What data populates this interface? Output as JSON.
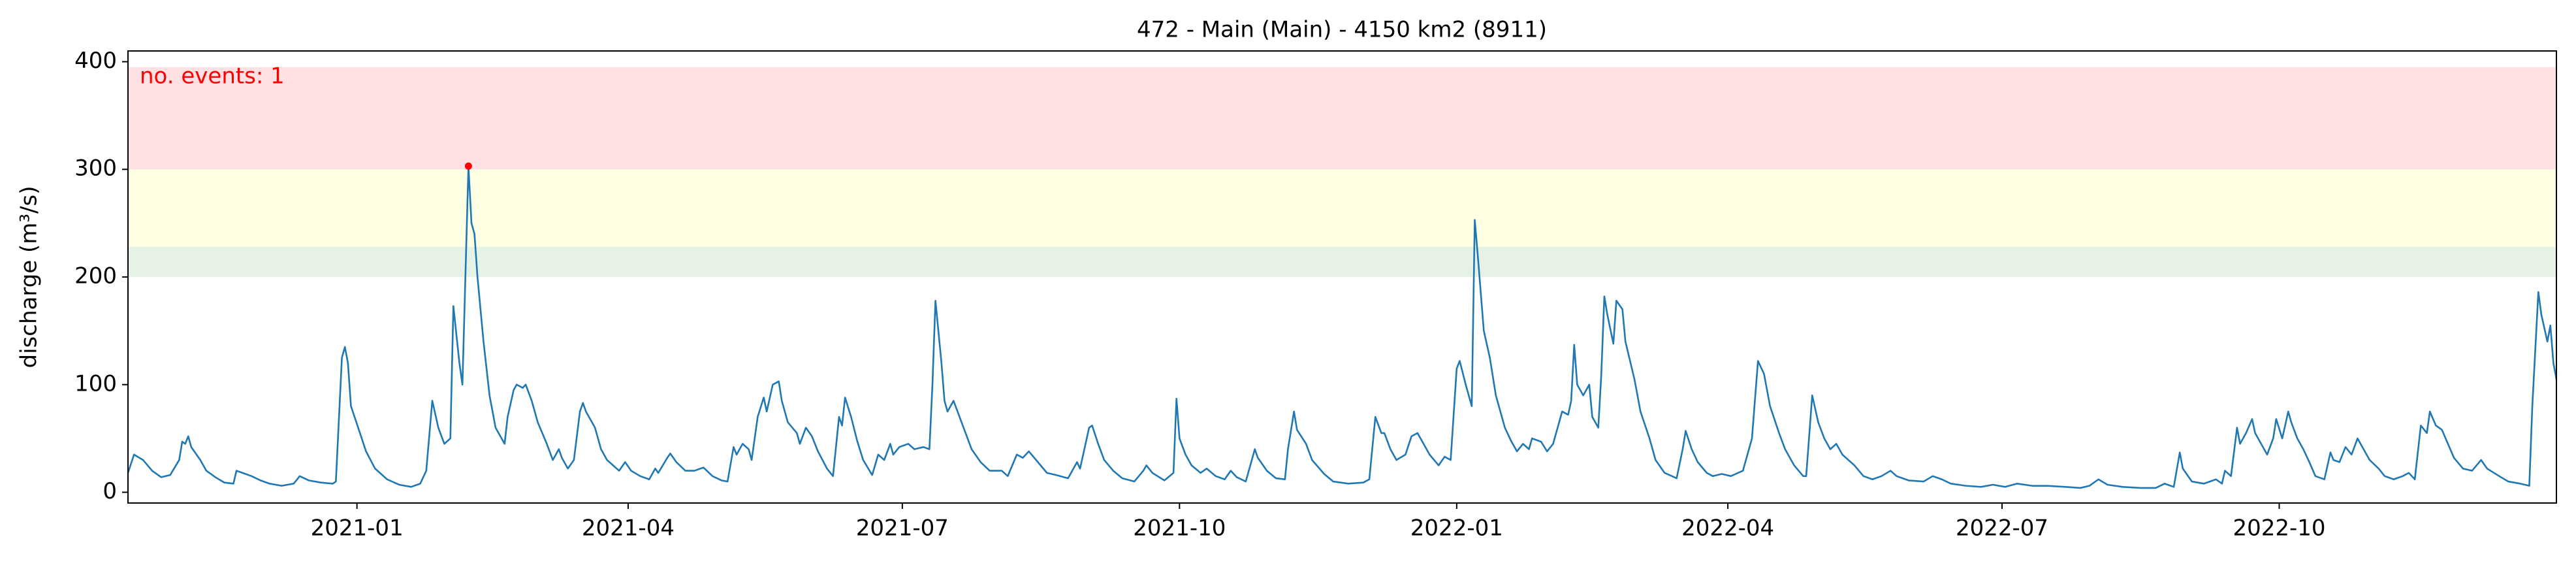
{
  "chart_data": {
    "type": "line",
    "title": "472 - Main (Main) - 4150 km2 (8911)",
    "ylabel": "discharge (m³/s)",
    "annotation": "no. events: 1",
    "ylim": [
      -10,
      410
    ],
    "yticks": [
      0,
      100,
      200,
      300,
      400
    ],
    "xlim": [
      "2020-10-17",
      "2023-01-01"
    ],
    "xticks": [
      {
        "value": "2021-01-01",
        "label": "2021-01"
      },
      {
        "value": "2021-04-01",
        "label": "2021-04"
      },
      {
        "value": "2021-07-01",
        "label": "2021-07"
      },
      {
        "value": "2021-10-01",
        "label": "2021-10"
      },
      {
        "value": "2022-01-01",
        "label": "2022-01"
      },
      {
        "value": "2022-04-01",
        "label": "2022-04"
      },
      {
        "value": "2022-07-01",
        "label": "2022-07"
      },
      {
        "value": "2022-10-01",
        "label": "2022-10"
      }
    ],
    "bands": [
      {
        "from": 200,
        "to": 228,
        "color": "#e6f2e6"
      },
      {
        "from": 228,
        "to": 300,
        "color": "#ffffe3"
      },
      {
        "from": 300,
        "to": 395,
        "color": "#ffe1e4"
      }
    ],
    "events": {
      "x": [
        "2021-02-07"
      ],
      "values": [
        303
      ],
      "color": "#ff0000"
    },
    "series": [
      {
        "color": "#1f77b4",
        "x": [
          "2020-10-17",
          "2020-10-19",
          "2020-10-22",
          "2020-10-25",
          "2020-10-28",
          "2020-10-31",
          "2020-11-03",
          "2020-11-04",
          "2020-11-05",
          "2020-11-06",
          "2020-11-07",
          "2020-11-10",
          "2020-11-12",
          "2020-11-15",
          "2020-11-18",
          "2020-11-21",
          "2020-11-22",
          "2020-11-24",
          "2020-11-27",
          "2020-11-30",
          "2020-12-03",
          "2020-12-07",
          "2020-12-11",
          "2020-12-13",
          "2020-12-16",
          "2020-12-20",
          "2020-12-24",
          "2020-12-25",
          "2020-12-27",
          "2020-12-28",
          "2020-12-29",
          "2020-12-30",
          "2021-01-02",
          "2021-01-04",
          "2021-01-07",
          "2021-01-11",
          "2021-01-15",
          "2021-01-19",
          "2021-01-22",
          "2021-01-24",
          "2021-01-26",
          "2021-01-28",
          "2021-01-30",
          "2021-02-01",
          "2021-02-02",
          "2021-02-04",
          "2021-02-05",
          "2021-02-07",
          "2021-02-08",
          "2021-02-09",
          "2021-02-10",
          "2021-02-12",
          "2021-02-14",
          "2021-02-16",
          "2021-02-19",
          "2021-02-20",
          "2021-02-22",
          "2021-02-23",
          "2021-02-25",
          "2021-02-26",
          "2021-02-28",
          "2021-03-02",
          "2021-03-05",
          "2021-03-07",
          "2021-03-09",
          "2021-03-10",
          "2021-03-12",
          "2021-03-14",
          "2021-03-16",
          "2021-03-17",
          "2021-03-18",
          "2021-03-21",
          "2021-03-23",
          "2021-03-25",
          "2021-03-29",
          "2021-03-31",
          "2021-04-02",
          "2021-04-05",
          "2021-04-08",
          "2021-04-10",
          "2021-04-11",
          "2021-04-14",
          "2021-04-15",
          "2021-04-17",
          "2021-04-20",
          "2021-04-23",
          "2021-04-26",
          "2021-04-29",
          "2021-05-02",
          "2021-05-04",
          "2021-05-06",
          "2021-05-07",
          "2021-05-09",
          "2021-05-11",
          "2021-05-12",
          "2021-05-14",
          "2021-05-16",
          "2021-05-17",
          "2021-05-19",
          "2021-05-21",
          "2021-05-22",
          "2021-05-24",
          "2021-05-27",
          "2021-05-28",
          "2021-05-30",
          "2021-06-01",
          "2021-06-03",
          "2021-06-06",
          "2021-06-08",
          "2021-06-10",
          "2021-06-11",
          "2021-06-12",
          "2021-06-14",
          "2021-06-16",
          "2021-06-18",
          "2021-06-21",
          "2021-06-23",
          "2021-06-25",
          "2021-06-27",
          "2021-06-28",
          "2021-06-30",
          "2021-07-03",
          "2021-07-05",
          "2021-07-08",
          "2021-07-10",
          "2021-07-11",
          "2021-07-12",
          "2021-07-14",
          "2021-07-15",
          "2021-07-16",
          "2021-07-18",
          "2021-07-20",
          "2021-07-22",
          "2021-07-24",
          "2021-07-27",
          "2021-07-30",
          "2021-08-03",
          "2021-08-05",
          "2021-08-08",
          "2021-08-10",
          "2021-08-12",
          "2021-08-15",
          "2021-08-18",
          "2021-08-21",
          "2021-08-25",
          "2021-08-28",
          "2021-08-29",
          "2021-09-01",
          "2021-09-02",
          "2021-09-04",
          "2021-09-06",
          "2021-09-09",
          "2021-09-12",
          "2021-09-16",
          "2021-09-19",
          "2021-09-20",
          "2021-09-22",
          "2021-09-26",
          "2021-09-29",
          "2021-09-30",
          "2021-10-01",
          "2021-10-03",
          "2021-10-05",
          "2021-10-08",
          "2021-10-10",
          "2021-10-13",
          "2021-10-16",
          "2021-10-18",
          "2021-10-20",
          "2021-10-23",
          "2021-10-26",
          "2021-10-27",
          "2021-10-30",
          "2021-11-02",
          "2021-11-05",
          "2021-11-06",
          "2021-11-08",
          "2021-11-09",
          "2021-11-12",
          "2021-11-14",
          "2021-11-18",
          "2021-11-21",
          "2021-11-26",
          "2021-12-01",
          "2021-12-03",
          "2021-12-05",
          "2021-12-07",
          "2021-12-08",
          "2021-12-10",
          "2021-12-12",
          "2021-12-15",
          "2021-12-17",
          "2021-12-19",
          "2021-12-21",
          "2021-12-23",
          "2021-12-26",
          "2021-12-28",
          "2021-12-30",
          "2022-01-01",
          "2022-01-02",
          "2022-01-04",
          "2022-01-06",
          "2022-01-07",
          "2022-01-08",
          "2022-01-10",
          "2022-01-12",
          "2022-01-14",
          "2022-01-17",
          "2022-01-19",
          "2022-01-21",
          "2022-01-23",
          "2022-01-25",
          "2022-01-26",
          "2022-01-29",
          "2022-01-31",
          "2022-02-02",
          "2022-02-04",
          "2022-02-05",
          "2022-02-07",
          "2022-02-08",
          "2022-02-09",
          "2022-02-10",
          "2022-02-12",
          "2022-02-14",
          "2022-02-15",
          "2022-02-17",
          "2022-02-18",
          "2022-02-19",
          "2022-02-20",
          "2022-02-22",
          "2022-02-23",
          "2022-02-25",
          "2022-02-26",
          "2022-03-01",
          "2022-03-03",
          "2022-03-06",
          "2022-03-08",
          "2022-03-11",
          "2022-03-15",
          "2022-03-17",
          "2022-03-18",
          "2022-03-20",
          "2022-03-22",
          "2022-03-25",
          "2022-03-27",
          "2022-03-30",
          "2022-04-02",
          "2022-04-06",
          "2022-04-08",
          "2022-04-09",
          "2022-04-11",
          "2022-04-13",
          "2022-04-15",
          "2022-04-18",
          "2022-04-20",
          "2022-04-23",
          "2022-04-26",
          "2022-04-27",
          "2022-04-29",
          "2022-05-01",
          "2022-05-03",
          "2022-05-05",
          "2022-05-07",
          "2022-05-09",
          "2022-05-13",
          "2022-05-16",
          "2022-05-19",
          "2022-05-22",
          "2022-05-25",
          "2022-05-27",
          "2022-05-31",
          "2022-06-05",
          "2022-06-08",
          "2022-06-11",
          "2022-06-14",
          "2022-06-19",
          "2022-06-24",
          "2022-06-28",
          "2022-07-02",
          "2022-07-06",
          "2022-07-11",
          "2022-07-16",
          "2022-07-22",
          "2022-07-27",
          "2022-07-30",
          "2022-08-02",
          "2022-08-05",
          "2022-08-10",
          "2022-08-16",
          "2022-08-21",
          "2022-08-24",
          "2022-08-27",
          "2022-08-29",
          "2022-08-30",
          "2022-09-02",
          "2022-09-06",
          "2022-09-10",
          "2022-09-12",
          "2022-09-13",
          "2022-09-15",
          "2022-09-17",
          "2022-09-18",
          "2022-09-20",
          "2022-09-22",
          "2022-09-23",
          "2022-09-25",
          "2022-09-27",
          "2022-09-29",
          "2022-09-30",
          "2022-10-02",
          "2022-10-04",
          "2022-10-05",
          "2022-10-07",
          "2022-10-09",
          "2022-10-11",
          "2022-10-13",
          "2022-10-16",
          "2022-10-18",
          "2022-10-19",
          "2022-10-21",
          "2022-10-23",
          "2022-10-25",
          "2022-10-27",
          "2022-10-29",
          "2022-10-31",
          "2022-11-03",
          "2022-11-05",
          "2022-11-08",
          "2022-11-11",
          "2022-11-13",
          "2022-11-15",
          "2022-11-17",
          "2022-11-19",
          "2022-11-20",
          "2022-11-22",
          "2022-11-24",
          "2022-11-26",
          "2022-11-28",
          "2022-12-01",
          "2022-12-04",
          "2022-12-07",
          "2022-12-09",
          "2022-12-13",
          "2022-12-16",
          "2022-12-20",
          "2022-12-23",
          "2022-12-24",
          "2022-12-26",
          "2022-12-27",
          "2022-12-29",
          "2022-12-30",
          "2022-12-31",
          "2023-01-01"
        ],
        "values": [
          18,
          35,
          30,
          20,
          14,
          16,
          30,
          47,
          45,
          52,
          42,
          30,
          20,
          14,
          9,
          8,
          20,
          18,
          15,
          11,
          8,
          6,
          8,
          15,
          11,
          9,
          8,
          10,
          125,
          135,
          120,
          80,
          55,
          38,
          22,
          12,
          7,
          5,
          8,
          20,
          85,
          60,
          45,
          50,
          173,
          120,
          100,
          303,
          250,
          240,
          200,
          140,
          90,
          60,
          45,
          70,
          95,
          100,
          97,
          100,
          85,
          65,
          45,
          30,
          40,
          32,
          22,
          30,
          75,
          83,
          75,
          60,
          40,
          30,
          20,
          28,
          20,
          15,
          12,
          22,
          18,
          32,
          36,
          28,
          20,
          20,
          23,
          15,
          11,
          10,
          42,
          35,
          45,
          40,
          30,
          70,
          88,
          75,
          100,
          103,
          85,
          65,
          55,
          45,
          60,
          52,
          38,
          22,
          15,
          70,
          62,
          88,
          70,
          48,
          30,
          16,
          35,
          30,
          45,
          35,
          42,
          45,
          40,
          42,
          40,
          100,
          178,
          120,
          85,
          75,
          85,
          70,
          55,
          40,
          28,
          20,
          20,
          15,
          35,
          32,
          38,
          28,
          18,
          16,
          13,
          28,
          22,
          60,
          62,
          45,
          30,
          20,
          13,
          10,
          20,
          25,
          18,
          11,
          18,
          87,
          50,
          35,
          25,
          18,
          22,
          15,
          12,
          20,
          14,
          10,
          40,
          32,
          20,
          13,
          12,
          40,
          75,
          58,
          45,
          30,
          17,
          10,
          8,
          9,
          12,
          70,
          55,
          55,
          40,
          30,
          35,
          52,
          55,
          45,
          35,
          25,
          33,
          30,
          115,
          122,
          100,
          80,
          253,
          220,
          150,
          125,
          90,
          60,
          48,
          38,
          45,
          40,
          50,
          47,
          38,
          45,
          65,
          75,
          72,
          85,
          137,
          100,
          90,
          100,
          70,
          60,
          110,
          182,
          165,
          138,
          178,
          170,
          140,
          105,
          75,
          50,
          30,
          18,
          13,
          40,
          57,
          40,
          28,
          18,
          15,
          17,
          15,
          20,
          40,
          50,
          122,
          110,
          80,
          55,
          40,
          25,
          15,
          15,
          90,
          65,
          50,
          40,
          45,
          35,
          25,
          15,
          12,
          15,
          20,
          15,
          11,
          10,
          15,
          12,
          8,
          6,
          5,
          7,
          5,
          8,
          6,
          6,
          5,
          4,
          6,
          12,
          7,
          5,
          4,
          4,
          8,
          5,
          37,
          22,
          10,
          8,
          12,
          8,
          20,
          15,
          60,
          45,
          55,
          68,
          55,
          45,
          35,
          50,
          68,
          50,
          75,
          65,
          50,
          40,
          28,
          15,
          12,
          37,
          30,
          28,
          42,
          35,
          50,
          40,
          30,
          22,
          15,
          12,
          15,
          18,
          12,
          62,
          55,
          75,
          62,
          58,
          45,
          32,
          22,
          20,
          30,
          22,
          15,
          10,
          8,
          6,
          80,
          186,
          165,
          140,
          155,
          120,
          105
        ]
      }
    ]
  }
}
